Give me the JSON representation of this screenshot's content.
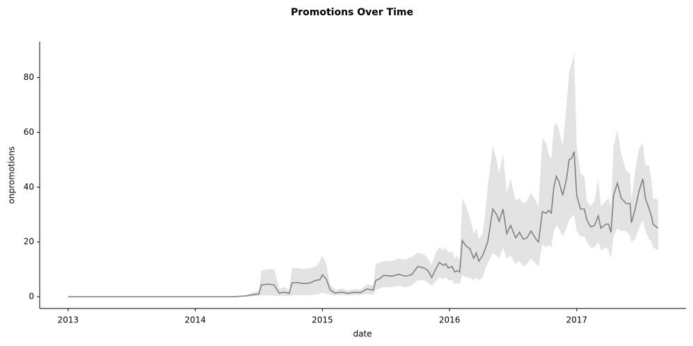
{
  "chart_data": {
    "type": "line",
    "title": "Promotions Over Time",
    "x_label": "date",
    "y_label": "onpromotions",
    "x": [
      2013.0,
      2014.3,
      2014.4,
      2014.45,
      2014.5,
      2014.52,
      2014.57,
      2014.62,
      2014.66,
      2014.7,
      2014.74,
      2014.76,
      2014.8,
      2014.85,
      2014.9,
      2014.95,
      2014.98,
      2015.0,
      2015.03,
      2015.06,
      2015.1,
      2015.15,
      2015.2,
      2015.25,
      2015.3,
      2015.35,
      2015.4,
      2015.42,
      2015.45,
      2015.48,
      2015.55,
      2015.6,
      2015.65,
      2015.7,
      2015.75,
      2015.8,
      2015.83,
      2015.86,
      2015.89,
      2015.92,
      2015.95,
      2015.97,
      2015.99,
      2016.02,
      2016.04,
      2016.06,
      2016.08,
      2016.1,
      2016.13,
      2016.16,
      2016.19,
      2016.21,
      2016.23,
      2016.26,
      2016.28,
      2016.3,
      2016.34,
      2016.37,
      2016.39,
      2016.42,
      2016.45,
      2016.48,
      2016.52,
      2016.55,
      2016.58,
      2016.61,
      2016.64,
      2016.68,
      2016.7,
      2016.73,
      2016.76,
      2016.78,
      2016.8,
      2016.82,
      2016.84,
      2016.86,
      2016.89,
      2016.92,
      2016.94,
      2016.96,
      2016.98,
      2017.0,
      2017.03,
      2017.06,
      2017.08,
      2017.11,
      2017.14,
      2017.17,
      2017.19,
      2017.23,
      2017.25,
      2017.27,
      2017.29,
      2017.32,
      2017.35,
      2017.39,
      2017.42,
      2017.43,
      2017.46,
      2017.49,
      2017.52,
      2017.54,
      2017.57,
      2017.59,
      2017.6,
      2017.64
    ],
    "series": [
      {
        "color": "#808080",
        "values": [
          0,
          0,
          0.3,
          0.7,
          1,
          4.3,
          4.6,
          4.3,
          1.3,
          1.6,
          1.2,
          5,
          5.2,
          4.8,
          5,
          6,
          6.2,
          8,
          6.5,
          2.5,
          1.3,
          1.7,
          1.2,
          1.6,
          1.5,
          2.8,
          2.4,
          6,
          6.5,
          7.8,
          7.5,
          8.2,
          7.5,
          8,
          11,
          10.5,
          9.5,
          7,
          10,
          12.5,
          11.5,
          12,
          10.5,
          11,
          9,
          9.5,
          9,
          20.5,
          18.5,
          17.5,
          14,
          16,
          13,
          15,
          17.5,
          20,
          32,
          30,
          27.5,
          32,
          23,
          26,
          21.5,
          23.5,
          21,
          21.5,
          24,
          21,
          20,
          31,
          30.5,
          31.5,
          30.5,
          40,
          44,
          42,
          37,
          43,
          50,
          50.5,
          53,
          37,
          32,
          32,
          28,
          25.5,
          26,
          29.5,
          25,
          26.5,
          26.5,
          23.5,
          37,
          41.5,
          36,
          34,
          34,
          27,
          32,
          38.5,
          43,
          36,
          32,
          29,
          26.5,
          25
        ],
        "lower": [
          0,
          0,
          0,
          0.2,
          0.3,
          0.5,
          0.5,
          0.4,
          0.3,
          0.3,
          0.2,
          0.5,
          0.6,
          0.5,
          0.6,
          0.8,
          1,
          1.5,
          1,
          0.8,
          0.5,
          0.6,
          0.5,
          0.6,
          0.6,
          1,
          0.8,
          2.5,
          3,
          3.5,
          3.5,
          4,
          3.5,
          4,
          6,
          6,
          5,
          4,
          5.5,
          7,
          6.5,
          7,
          6,
          6,
          4.5,
          5,
          4.5,
          8,
          7,
          7,
          6,
          7,
          6,
          7,
          10,
          12,
          16,
          15,
          14,
          18,
          14,
          15,
          12,
          13,
          11,
          12,
          14,
          12,
          11,
          19,
          18,
          19,
          18,
          24,
          26,
          25,
          22,
          25,
          28,
          29,
          30,
          24,
          22,
          22,
          20,
          18,
          18,
          20,
          17,
          18,
          17,
          14,
          22,
          25,
          24,
          24,
          22,
          20,
          21,
          25,
          28,
          24,
          21,
          20,
          18,
          17
        ],
        "upper": [
          0,
          0,
          0.6,
          1.5,
          2,
          9.5,
          10,
          10,
          3,
          3.5,
          2.5,
          10.5,
          10.5,
          10,
          10.5,
          11,
          13,
          15,
          12,
          4.5,
          2.5,
          3,
          2.2,
          2.8,
          2.6,
          4.5,
          4,
          12,
          12.5,
          13,
          13,
          14,
          13.5,
          14.5,
          16,
          15.5,
          14,
          11.5,
          16,
          18,
          17,
          18,
          16,
          16.5,
          14,
          15,
          13,
          36,
          33,
          29,
          23,
          25,
          21,
          23,
          30,
          40,
          55,
          50,
          45,
          52,
          38,
          43,
          35,
          36,
          34,
          35,
          38,
          35,
          33,
          58,
          56,
          52,
          50,
          62,
          63.5,
          61,
          55,
          70,
          82,
          85,
          89,
          55,
          45,
          44,
          35,
          33,
          35,
          43,
          33,
          35,
          36,
          33,
          55,
          61,
          52,
          46,
          45,
          35,
          46,
          54,
          56,
          48,
          48,
          42,
          36,
          35.5
        ]
      }
    ],
    "xlim": [
      2012.776,
      2017.86
    ],
    "xticks": [
      2013,
      2014,
      2015,
      2016,
      2017
    ],
    "ylim": [
      -4.3,
      93.1
    ],
    "yticks": [
      0,
      20,
      40,
      60,
      80
    ]
  }
}
